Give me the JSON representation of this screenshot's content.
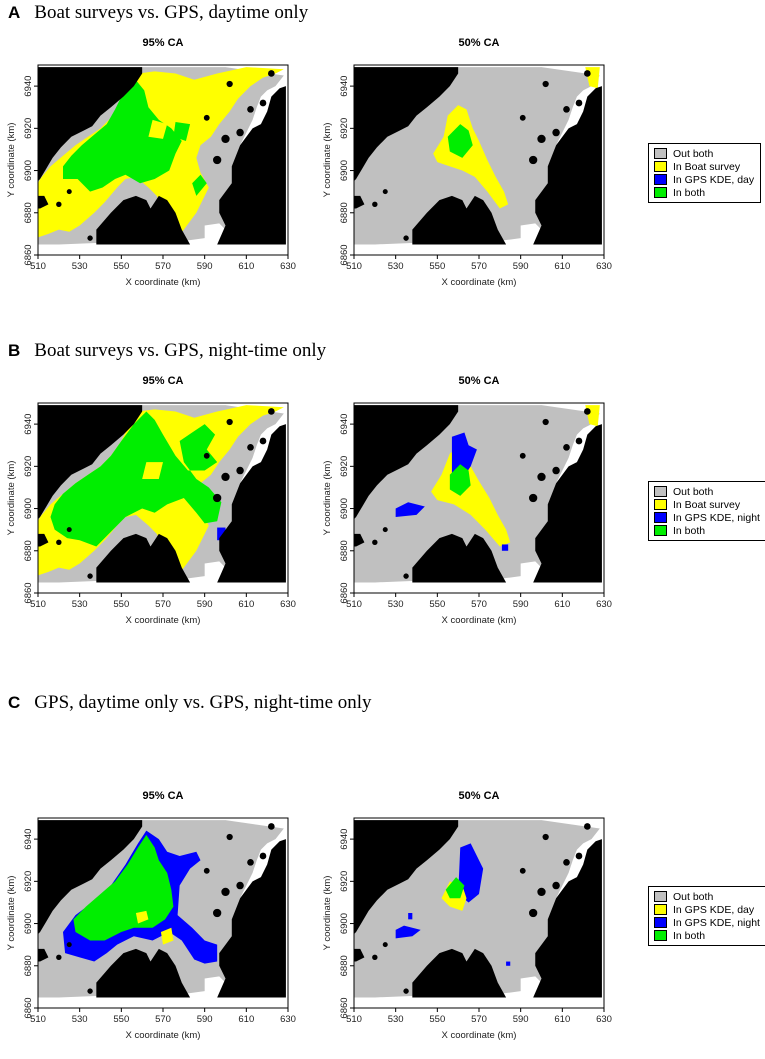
{
  "colors": {
    "out_both": "#c0c0c0",
    "in_a": "#ffff00",
    "in_b": "#0000ff",
    "in_both": "#00ee00",
    "land": "#000000"
  },
  "axes": {
    "xlabel": "X coordinate (km)",
    "ylabel": "Y coordinate (km)",
    "x_ticks": [
      "510",
      "530",
      "550",
      "570",
      "590",
      "610",
      "630"
    ],
    "y_ticks": [
      "6860",
      "6880",
      "6900",
      "6920",
      "6940"
    ],
    "x_range": [
      510,
      630
    ],
    "y_range": [
      6860,
      6950
    ]
  },
  "panels": [
    {
      "letter": "A",
      "title": "Boat surveys vs. GPS, daytime only",
      "maps": [
        {
          "title": "95% CA"
        },
        {
          "title": "50% CA"
        }
      ],
      "legend": [
        "Out both",
        "In Boat survey",
        "In GPS KDE, day",
        "In both"
      ]
    },
    {
      "letter": "B",
      "title": "Boat surveys vs. GPS, night-time only",
      "maps": [
        {
          "title": "95% CA"
        },
        {
          "title": "50% CA"
        }
      ],
      "legend": [
        "Out both",
        "In Boat survey",
        "In GPS KDE, night",
        "In both"
      ]
    },
    {
      "letter": "C",
      "title": "GPS, daytime only vs. GPS, night-time only",
      "maps": [
        {
          "title": "95% CA"
        },
        {
          "title": "50% CA"
        }
      ],
      "legend": [
        "Out both",
        "In GPS KDE, day",
        "In GPS KDE, night",
        "In both"
      ]
    }
  ]
}
